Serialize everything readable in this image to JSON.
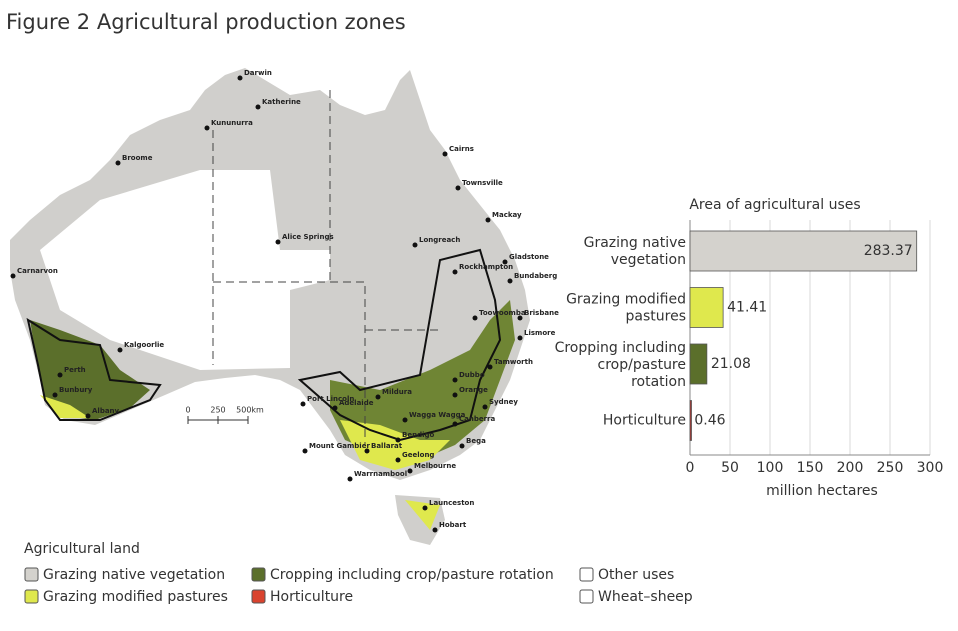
{
  "title": "Figure 2 Agricultural production zones",
  "map": {
    "cities": [
      "Darwin",
      "Katherine",
      "Kununurra",
      "Broome",
      "Cairns",
      "Townsville",
      "Mackay",
      "Alice Springs",
      "Longreach",
      "Carnarvon",
      "Gladstone",
      "Rockhampton",
      "Bundaberg",
      "Toowoomba",
      "Brisbane",
      "Lismore",
      "Kalgoorlie",
      "Tamworth",
      "Dubbo",
      "Perth",
      "Orange",
      "Mildura",
      "Port Lincoln",
      "Bunbury",
      "Adelaide",
      "Sydney",
      "Albany",
      "Wagga Wagga",
      "Canberra",
      "Bendigo",
      "Mount Gambier",
      "Ballarat",
      "Bega",
      "Geelong",
      "Melbourne",
      "Warrnambool",
      "Launceston",
      "Hobart"
    ],
    "scale": [
      "0",
      "250",
      "500km"
    ]
  },
  "chart_data": {
    "type": "bar",
    "orientation": "horizontal",
    "title": "Area of agricultural uses",
    "categories": [
      "Grazing native vegetation",
      "Grazing modified pastures",
      "Cropping including crop/pasture rotation",
      "Horticulture"
    ],
    "values": [
      283.37,
      41.41,
      21.08,
      0.46
    ],
    "colors": [
      "#d4d2cd",
      "#dfe84d",
      "#5b6f2b",
      "#b5302a"
    ],
    "xlim": [
      0,
      300
    ],
    "xticks": [
      0,
      50,
      100,
      150,
      200,
      250,
      300
    ],
    "xlabel": "million hectares",
    "grid": true
  },
  "legend": {
    "title": "Agricultural land",
    "items": [
      {
        "label": "Grazing native vegetation",
        "color": "#d4d2cd"
      },
      {
        "label": "Grazing modified pastures",
        "color": "#dfe84d"
      },
      {
        "label": "Cropping including crop/pasture rotation",
        "color": "#5b6f2b"
      },
      {
        "label": "Horticulture",
        "color": "#d9432e"
      },
      {
        "label": "Other uses",
        "color": "#ffffff"
      },
      {
        "label": "Wheat–sheep",
        "color": "#ffffff"
      }
    ]
  }
}
